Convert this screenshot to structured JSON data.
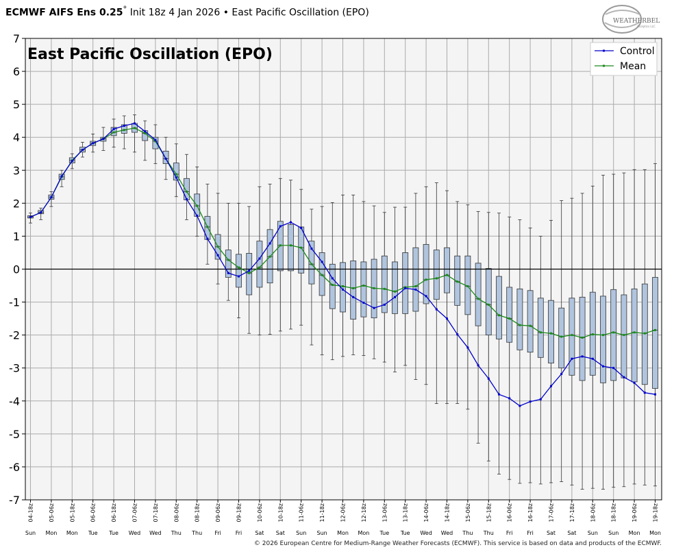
{
  "header": {
    "model": "ECMWF AIFS Ens 0.25",
    "degree": "°",
    "init": "Init 18z 4 Jan 2026",
    "bullet": "•",
    "index_name": "East Pacific Oscillation (EPO)"
  },
  "logo": {
    "text": "WEATHERBELL",
    "sub": "Analytics LLC"
  },
  "footer": {
    "text": "© 2026 European Centre for Medium-Range Weather Forecasts (ECMWF). This service is based on data and products of the ECMWF."
  },
  "colors": {
    "control": "#0000cc",
    "mean": "#1a8a1a",
    "box": "#b0c4de",
    "plot_bg": "#f4f4f4",
    "grid": "#aaaaaa"
  },
  "chart_data": {
    "type": "box",
    "title": "East Pacific Oscillation (EPO)",
    "ylim": [
      -7,
      7
    ],
    "yticks": [
      7,
      6,
      5,
      4,
      3,
      2,
      1,
      0,
      -1,
      -2,
      -3,
      -4,
      -5,
      -6,
      -7
    ],
    "grid": true,
    "legend": {
      "position": "top-right",
      "entries": [
        "Control",
        "Mean"
      ]
    },
    "x_labels": [
      "04-18z",
      "05-06z",
      "05-18z",
      "06-06z",
      "06-18z",
      "07-06z",
      "07-18z",
      "08-06z",
      "08-18z",
      "09-06z",
      "09-18z",
      "10-06z",
      "10-18z",
      "11-06z",
      "11-18z",
      "12-06z",
      "12-18z",
      "13-06z",
      "13-18z",
      "14-06z",
      "14-18z",
      "15-06z",
      "15-18z",
      "16-06z",
      "16-18z",
      "17-06z",
      "17-18z",
      "18-06z",
      "18-18z",
      "19-06z",
      "19-18z"
    ],
    "day_labels": [
      "Sun",
      "Mon",
      "Mon",
      "Tue",
      "Tue",
      "Wed",
      "Wed",
      "Thu",
      "Thu",
      "Fri",
      "Fri",
      "Sat",
      "Sat",
      "Sun",
      "Sun",
      "Mon",
      "Mon",
      "Tue",
      "Tue",
      "Wed",
      "Wed",
      "Thu",
      "Thu",
      "Fri",
      "Fri",
      "Sat",
      "Sat",
      "Sun",
      "Sun",
      "Mon",
      "Mon"
    ],
    "series": [
      {
        "name": "Control",
        "values": [
          1.58,
          1.72,
          2.18,
          2.82,
          3.28,
          3.62,
          3.82,
          3.95,
          4.25,
          4.35,
          4.42,
          4.18,
          3.92,
          3.35,
          2.78,
          2.12,
          1.62,
          0.92,
          0.42,
          -0.12,
          -0.22,
          -0.05,
          0.32,
          0.78,
          1.3,
          1.42,
          1.25,
          0.62,
          0.22,
          -0.28,
          -0.62,
          -0.85,
          -1.02,
          -1.18,
          -1.08,
          -0.85,
          -0.58,
          -0.62,
          -0.82,
          -1.22,
          -1.5,
          -1.98,
          -2.38,
          -2.92,
          -3.32,
          -3.8,
          -3.92,
          -4.15,
          -4.02,
          -3.95,
          -3.55,
          -3.18,
          -2.72,
          -2.65,
          -2.72,
          -2.95,
          -3.0,
          -3.28,
          -3.45,
          -3.75,
          -3.8
        ]
      },
      {
        "name": "Mean",
        "values": [
          1.58,
          1.72,
          2.18,
          2.8,
          3.3,
          3.62,
          3.82,
          3.95,
          4.15,
          4.22,
          4.28,
          4.12,
          3.88,
          3.35,
          2.88,
          2.35,
          1.92,
          1.28,
          0.68,
          0.28,
          0.05,
          -0.12,
          0.05,
          0.38,
          0.72,
          0.72,
          0.65,
          0.15,
          -0.18,
          -0.48,
          -0.52,
          -0.58,
          -0.5,
          -0.58,
          -0.6,
          -0.68,
          -0.55,
          -0.52,
          -0.32,
          -0.28,
          -0.18,
          -0.38,
          -0.52,
          -0.9,
          -1.08,
          -1.4,
          -1.5,
          -1.7,
          -1.72,
          -1.92,
          -1.95,
          -2.05,
          -2.0,
          -2.08,
          -1.98,
          -2.0,
          -1.92,
          -2.0,
          -1.92,
          -1.95,
          -1.85
        ]
      },
      {
        "name": "Q1",
        "values": [
          1.55,
          1.68,
          2.12,
          2.72,
          3.22,
          3.55,
          3.75,
          3.88,
          4.05,
          4.12,
          4.15,
          3.9,
          3.65,
          3.2,
          2.7,
          2.1,
          1.6,
          0.9,
          0.3,
          -0.25,
          -0.55,
          -0.78,
          -0.55,
          -0.42,
          -0.05,
          -0.05,
          -0.12,
          -0.45,
          -0.8,
          -1.2,
          -1.3,
          -1.52,
          -1.45,
          -1.48,
          -1.32,
          -1.35,
          -1.35,
          -1.28,
          -1.05,
          -0.92,
          -0.72,
          -1.1,
          -1.38,
          -1.72,
          -2.0,
          -2.12,
          -2.22,
          -2.45,
          -2.52,
          -2.68,
          -2.85,
          -3.0,
          -3.22,
          -3.38,
          -3.22,
          -3.45,
          -3.38,
          -3.3,
          -3.42,
          -3.5,
          -3.62
        ]
      },
      {
        "name": "Q3",
        "values": [
          1.62,
          1.78,
          2.25,
          2.88,
          3.38,
          3.7,
          3.88,
          4.0,
          4.3,
          4.38,
          4.42,
          4.2,
          4.0,
          3.58,
          3.22,
          2.75,
          2.28,
          1.6,
          1.05,
          0.58,
          0.45,
          0.48,
          0.85,
          1.2,
          1.45,
          1.35,
          1.28,
          0.85,
          0.5,
          0.15,
          0.2,
          0.25,
          0.22,
          0.3,
          0.4,
          0.22,
          0.5,
          0.65,
          0.75,
          0.58,
          0.65,
          0.4,
          0.4,
          0.18,
          0.02,
          -0.22,
          -0.55,
          -0.6,
          -0.65,
          -0.88,
          -0.95,
          -1.18,
          -0.88,
          -0.85,
          -0.7,
          -0.82,
          -0.62,
          -0.78,
          -0.6,
          -0.45,
          -0.25
        ]
      },
      {
        "name": "Min",
        "values": [
          1.4,
          1.5,
          1.9,
          2.5,
          3.05,
          3.4,
          3.55,
          3.6,
          3.7,
          3.65,
          3.55,
          3.3,
          3.2,
          2.72,
          2.2,
          1.5,
          1.0,
          0.15,
          -0.45,
          -0.95,
          -1.48,
          -1.95,
          -2.0,
          -1.98,
          -1.88,
          -1.82,
          -1.7,
          -2.3,
          -2.6,
          -2.75,
          -2.65,
          -2.6,
          -2.62,
          -2.72,
          -2.82,
          -3.12,
          -2.92,
          -3.35,
          -3.5,
          -4.08,
          -4.08,
          -4.08,
          -4.25,
          -5.28,
          -5.82,
          -6.22,
          -6.38,
          -6.5,
          -6.48,
          -6.52,
          -6.48,
          -6.45,
          -6.55,
          -6.68,
          -6.65,
          -6.68,
          -6.62,
          -6.6,
          -6.52,
          -6.55,
          -6.58
        ]
      },
      {
        "name": "Max",
        "values": [
          1.7,
          1.85,
          2.35,
          3.0,
          3.5,
          3.85,
          4.1,
          4.3,
          4.55,
          4.65,
          4.68,
          4.5,
          4.38,
          4.0,
          3.8,
          3.48,
          3.1,
          2.58,
          2.3,
          2.0,
          2.0,
          1.9,
          2.5,
          2.58,
          2.75,
          2.7,
          2.42,
          1.82,
          1.9,
          2.02,
          2.25,
          2.25,
          2.05,
          1.92,
          1.72,
          1.88,
          1.88,
          2.3,
          2.5,
          2.62,
          2.38,
          2.05,
          1.95,
          1.75,
          1.72,
          1.7,
          1.58,
          1.5,
          1.25,
          1.0,
          1.48,
          2.08,
          2.15,
          2.3,
          2.52,
          2.85,
          2.88,
          2.92,
          3.02,
          3.02,
          3.2
        ]
      }
    ]
  }
}
